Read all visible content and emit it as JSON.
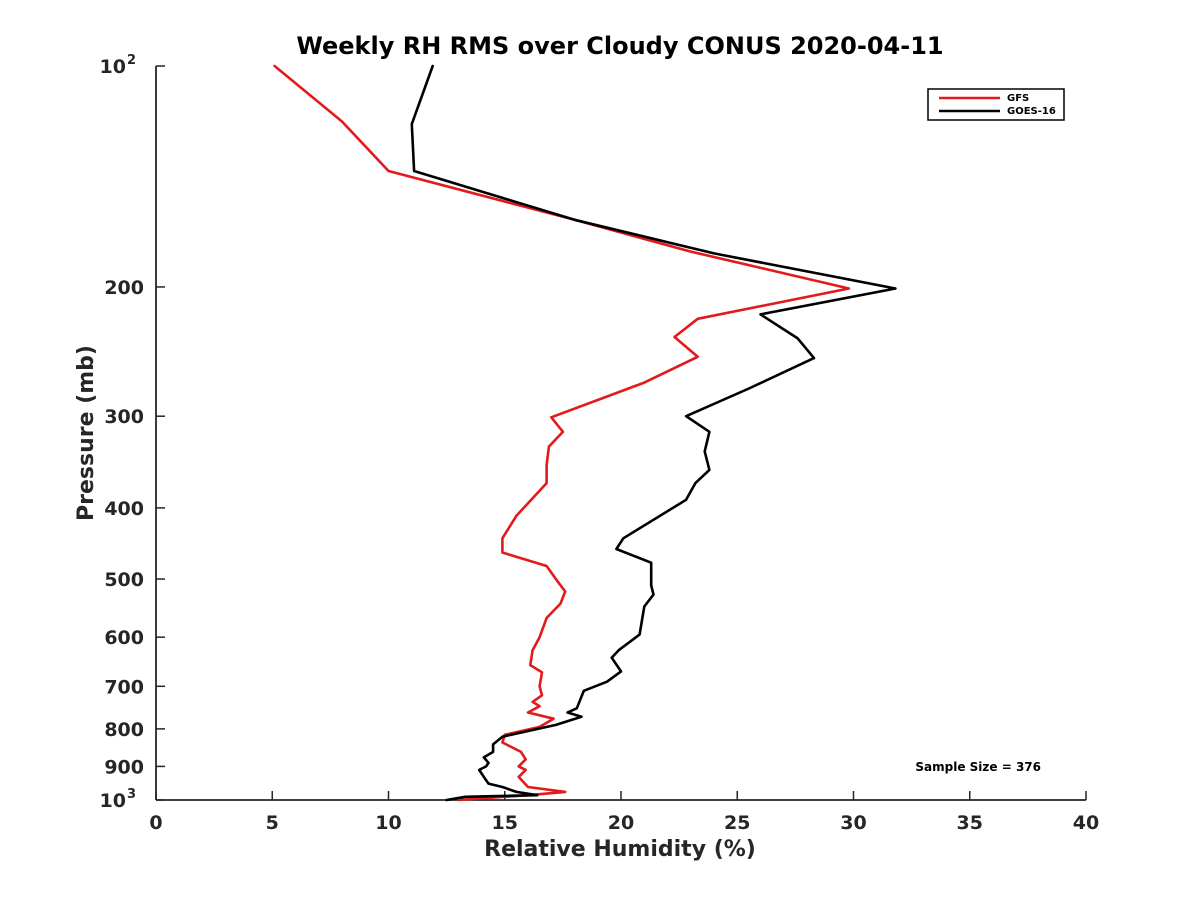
{
  "chart_data": {
    "type": "line",
    "title": "Weekly RH RMS over Cloudy CONUS 2020-04-11",
    "xlabel": "Relative Humidity (%)",
    "ylabel": "Pressure (mb)",
    "xlim": [
      0,
      40
    ],
    "ylim": [
      100,
      1000
    ],
    "y_scale": "log",
    "y_reversed": true,
    "grid": false,
    "legend_position": "top-right",
    "x_ticks": [
      "0",
      "5",
      "10",
      "15",
      "20",
      "25",
      "30",
      "35",
      "40"
    ],
    "y_ticks": [
      {
        "value": 100,
        "label": "10",
        "sup": "2"
      },
      {
        "value": 200,
        "label": "200",
        "sup": ""
      },
      {
        "value": 300,
        "label": "300",
        "sup": ""
      },
      {
        "value": 400,
        "label": "400",
        "sup": ""
      },
      {
        "value": 500,
        "label": "500",
        "sup": ""
      },
      {
        "value": 600,
        "label": "600",
        "sup": ""
      },
      {
        "value": 700,
        "label": "700",
        "sup": ""
      },
      {
        "value": 800,
        "label": "800",
        "sup": ""
      },
      {
        "value": 900,
        "label": "900",
        "sup": ""
      },
      {
        "value": 1000,
        "label": "10",
        "sup": "3"
      }
    ],
    "annotation": "Sample Size = 376",
    "series": [
      {
        "name": "GFS",
        "color": "#e31a1c",
        "points": [
          [
            5.1,
            100
          ],
          [
            8.0,
            119
          ],
          [
            10.0,
            139
          ],
          [
            18.0,
            162
          ],
          [
            23.0,
            179
          ],
          [
            29.8,
            201
          ],
          [
            23.3,
            221
          ],
          [
            22.3,
            234
          ],
          [
            23.3,
            249
          ],
          [
            21.0,
            270
          ],
          [
            17.0,
            301
          ],
          [
            17.5,
            315
          ],
          [
            16.9,
            330
          ],
          [
            16.8,
            350
          ],
          [
            16.8,
            370
          ],
          [
            15.5,
            410
          ],
          [
            14.9,
            440
          ],
          [
            14.9,
            460
          ],
          [
            16.8,
            480
          ],
          [
            17.3,
            505
          ],
          [
            17.6,
            520
          ],
          [
            17.4,
            540
          ],
          [
            16.8,
            565
          ],
          [
            16.5,
            600
          ],
          [
            16.2,
            625
          ],
          [
            16.1,
            655
          ],
          [
            16.6,
            670
          ],
          [
            16.5,
            700
          ],
          [
            16.6,
            720
          ],
          [
            16.2,
            735
          ],
          [
            16.5,
            745
          ],
          [
            16.0,
            760
          ],
          [
            17.1,
            775
          ],
          [
            16.5,
            795
          ],
          [
            15.0,
            815
          ],
          [
            14.9,
            835
          ],
          [
            15.7,
            860
          ],
          [
            15.9,
            880
          ],
          [
            15.6,
            900
          ],
          [
            15.9,
            910
          ],
          [
            15.6,
            930
          ],
          [
            16.0,
            960
          ],
          [
            17.6,
            975
          ],
          [
            16.0,
            985
          ],
          [
            13.0,
            1000
          ]
        ]
      },
      {
        "name": "GOES-16",
        "color": "#000000",
        "points": [
          [
            11.9,
            100
          ],
          [
            11.0,
            120
          ],
          [
            11.1,
            139
          ],
          [
            18.0,
            162
          ],
          [
            24.0,
            180
          ],
          [
            31.8,
            201
          ],
          [
            26.0,
            218
          ],
          [
            27.6,
            235
          ],
          [
            28.3,
            250
          ],
          [
            25.5,
            275
          ],
          [
            22.8,
            300
          ],
          [
            23.8,
            315
          ],
          [
            23.6,
            335
          ],
          [
            23.8,
            355
          ],
          [
            23.2,
            370
          ],
          [
            22.8,
            390
          ],
          [
            20.1,
            440
          ],
          [
            19.8,
            455
          ],
          [
            21.3,
            475
          ],
          [
            21.3,
            510
          ],
          [
            21.4,
            525
          ],
          [
            21.0,
            545
          ],
          [
            20.8,
            595
          ],
          [
            19.9,
            625
          ],
          [
            19.6,
            640
          ],
          [
            20.0,
            668
          ],
          [
            19.4,
            690
          ],
          [
            18.4,
            710
          ],
          [
            18.1,
            750
          ],
          [
            17.7,
            760
          ],
          [
            18.3,
            770
          ],
          [
            17.2,
            790
          ],
          [
            14.9,
            820
          ],
          [
            14.5,
            840
          ],
          [
            14.5,
            860
          ],
          [
            14.1,
            875
          ],
          [
            14.3,
            890
          ],
          [
            14.2,
            900
          ],
          [
            13.9,
            910
          ],
          [
            14.1,
            930
          ],
          [
            14.3,
            950
          ],
          [
            14.9,
            960
          ],
          [
            15.5,
            975
          ],
          [
            16.4,
            985
          ],
          [
            13.3,
            990
          ],
          [
            12.5,
            1000
          ]
        ]
      }
    ]
  }
}
